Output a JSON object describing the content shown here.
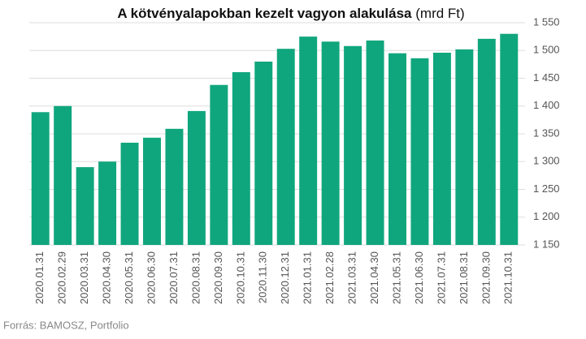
{
  "chart_data": {
    "type": "bar",
    "title": "A kötvényalapokban kezelt vagyon alakulása",
    "unit": "(mrd Ft)",
    "source": "Forrás: BAMOSZ, Portfolio",
    "categories": [
      "2020.01.31",
      "2020.02.29",
      "2020.03.31",
      "2020.04.30",
      "2020.05.31",
      "2020.06.30",
      "2020.07.31",
      "2020.08.31",
      "2020.09.30",
      "2020.10.31",
      "2020.11.30",
      "2020.12.31",
      "2021.01.31",
      "2021.02.28",
      "2021.03.31",
      "2021.04.30",
      "2021.05.31",
      "2021.06.30",
      "2021.07.31",
      "2021.08.31",
      "2021.09.30",
      "2021.10.31"
    ],
    "values": [
      1389,
      1400,
      1290,
      1300,
      1334,
      1343,
      1359,
      1391,
      1438,
      1461,
      1480,
      1503,
      1525,
      1516,
      1508,
      1518,
      1495,
      1486,
      1496,
      1502,
      1521,
      1530
    ],
    "color": "#10a67d",
    "ylim": [
      1150,
      1550
    ],
    "yticks": [
      {
        "value": 1150,
        "label": "1 150"
      },
      {
        "value": 1200,
        "label": "1 200"
      },
      {
        "value": 1250,
        "label": "1 250"
      },
      {
        "value": 1300,
        "label": "1 300"
      },
      {
        "value": 1350,
        "label": "1 350"
      },
      {
        "value": 1400,
        "label": "1 400"
      },
      {
        "value": 1450,
        "label": "1 450"
      },
      {
        "value": 1500,
        "label": "1 500"
      },
      {
        "value": 1550,
        "label": "1 550"
      }
    ],
    "grid": true
  }
}
